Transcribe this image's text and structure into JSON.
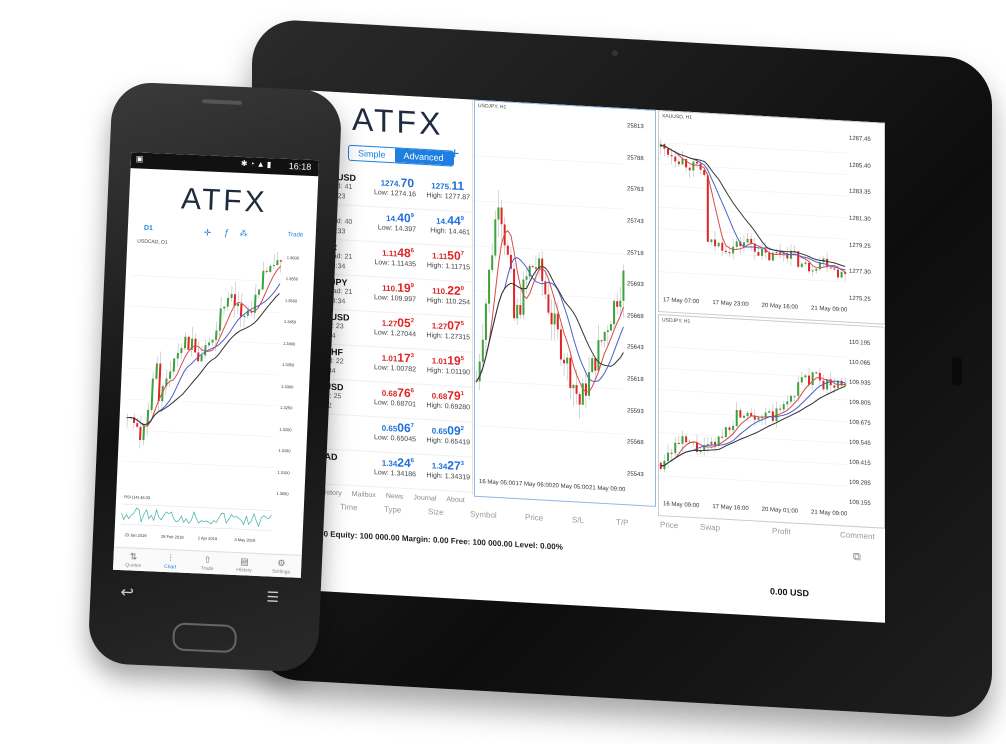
{
  "brand": {
    "logo": "ATFX"
  },
  "tablet": {
    "mode_tabs": {
      "simple": "Simple",
      "advanced": "Advanced"
    },
    "quotes": [
      {
        "symbol": "XAUUSD",
        "spread": "Spread: 41",
        "time": "09:58:23",
        "bid_main": "1274.",
        "bid_big": "70",
        "bid_sup": "",
        "ask_main": "1275.",
        "ask_big": "11",
        "ask_sup": "",
        "low": "Low: 1274.16",
        "high": "High: 1277.87",
        "color": "blue"
      },
      {
        "symbol": "XA",
        "spread": "Spread: 40",
        "time": "09:58:33",
        "bid_main": "14.",
        "bid_big": "40",
        "bid_sup": "9",
        "ask_main": "14.",
        "ask_big": "44",
        "ask_sup": "9",
        "low": "Low: 14.397",
        "high": "High: 14.461",
        "color": "blue"
      },
      {
        "symbol": "EUR",
        "spread": "Spread: 21",
        "time": "09:58:34",
        "bid_main": "1.11",
        "bid_big": "48",
        "bid_sup": "6",
        "ask_main": "1.11",
        "ask_big": "50",
        "ask_sup": "7",
        "low": "Low: 1.11435",
        "high": "High: 1.11715",
        "color": "red"
      },
      {
        "symbol": "SDJPY",
        "spread": "Spread: 21",
        "time": "09:58:34",
        "bid_main": "110.",
        "bid_big": "19",
        "bid_sup": "9",
        "ask_main": "110.",
        "ask_big": "22",
        "ask_sup": "0",
        "low": "Low: 109.997",
        "high": "High: 110.254",
        "color": "red"
      },
      {
        "symbol": "BPUSD",
        "spread": "read: 23",
        "time": "58:34",
        "bid_main": "1.27",
        "bid_big": "05",
        "bid_sup": "2",
        "ask_main": "1.27",
        "ask_big": "07",
        "ask_sup": "5",
        "low": "Low: 1.27044",
        "high": "High: 1.27315",
        "color": "red"
      },
      {
        "symbol": "DCHF",
        "spread": "read: 22",
        "time": "58:34",
        "bid_main": "1.01",
        "bid_big": "17",
        "bid_sup": "3",
        "ask_main": "1.01",
        "ask_big": "19",
        "ask_sup": "5",
        "low": "Low: 1.00782",
        "high": "High: 1.01190",
        "color": "red"
      },
      {
        "symbol": "DUSD",
        "spread": "ead: 25",
        "time": "8:22",
        "bid_main": "0.68",
        "bid_big": "76",
        "bid_sup": "6",
        "ask_main": "0.68",
        "ask_big": "79",
        "ask_sup": "1",
        "low": "Low: 0.68701",
        "high": "High: 0.69280",
        "color": "red"
      },
      {
        "symbol": "",
        "spread": "",
        "time": "",
        "bid_main": "0.65",
        "bid_big": "06",
        "bid_sup": "7",
        "ask_main": "0.65",
        "ask_big": "09",
        "ask_sup": "2",
        "low": "Low: 0.65045",
        "high": "High: 0.65419",
        "color": "blue"
      },
      {
        "symbol": "CAD",
        "spread": "",
        "time": "",
        "bid_main": "1.34",
        "bid_big": "24",
        "bid_sup": "6",
        "ask_main": "1.34",
        "ask_big": "27",
        "ask_sup": "3",
        "low": "Low: 1.34186",
        "high": "High: 1.34319",
        "color": "blue"
      }
    ],
    "bottom_tabs": [
      "History",
      "Mailbox",
      "News",
      "Journal",
      "About"
    ],
    "columns": [
      "Time",
      "Type",
      "Size",
      "Symbol",
      "Price",
      "S/L",
      "T/P",
      "Price",
      "Swap",
      "Profit",
      "Comment"
    ],
    "account_line": "00.00 Equity: 100 000.00 Margin: 0.00 Free: 100 000.00 Level: 0.00%",
    "profit_total": "0.00  USD",
    "charts": {
      "left": {
        "title": "USDJPY, H1",
        "y_ticks": [
          "25813",
          "25788",
          "25763",
          "25743",
          "25718",
          "25693",
          "25668",
          "25643",
          "25618",
          "25593",
          "25568",
          "25543"
        ],
        "x_ticks": [
          "16 May 05:00",
          "17 May 06:00",
          "20 May 05:00",
          "21 May 09:00"
        ]
      },
      "top_right": {
        "title": "XAUUSD, H1",
        "y_ticks": [
          "1287.45",
          "1285.40",
          "1283.35",
          "1281.30",
          "1279.25",
          "1277.30",
          "1275.25"
        ],
        "x_ticks": [
          "17 May 07:00",
          "17 May 23:00",
          "20 May 16:00",
          "21 May 09:00"
        ]
      },
      "bottom_right": {
        "title": "USDJPY, H1",
        "y_ticks": [
          "110.195",
          "110.065",
          "109.935",
          "109.805",
          "109.675",
          "109.545",
          "109.415",
          "109.285",
          "109.155"
        ],
        "x_ticks": [
          "16 May 09:00",
          "17 May 16:00",
          "20 May 01:00",
          "21 May 09:00"
        ]
      }
    }
  },
  "phone": {
    "status_time": "16:18",
    "timeframe": "D1",
    "trade_label": "Trade",
    "chart_title": "USDCAD, D1",
    "indicator_label": "RSI (14) 46.33",
    "x_ticks": [
      "23 Jan 2019",
      "28 Feb 2019",
      "1 Apr 2019",
      "3 May 2019"
    ],
    "y_ticks": [
      "1.3600",
      "1.3550",
      "1.3500",
      "1.3450",
      "1.3400",
      "1.3350",
      "1.3300",
      "1.3250",
      "1.3200",
      "1.3150",
      "1.3100",
      "1.3050"
    ],
    "nav": [
      {
        "label": "Quotes",
        "icon": "quotes-icon"
      },
      {
        "label": "Chart",
        "icon": "chart-icon"
      },
      {
        "label": "Trade",
        "icon": "trade-icon"
      },
      {
        "label": "History",
        "icon": "history-icon"
      },
      {
        "label": "Settings",
        "icon": "settings-icon"
      }
    ]
  },
  "colors": {
    "bull": "#3aa33a",
    "bear": "#e02424",
    "ma_red": "#d84b4b",
    "ma_blue": "#4a60c8",
    "ma_dark": "#333333",
    "accent": "#1e7fe0"
  }
}
